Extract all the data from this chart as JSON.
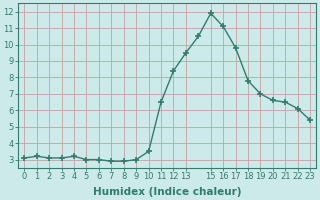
{
  "x": [
    0,
    1,
    2,
    3,
    4,
    5,
    6,
    7,
    8,
    9,
    10,
    11,
    12,
    13,
    14,
    15,
    16,
    17,
    18,
    19,
    20,
    21,
    22,
    23
  ],
  "y": [
    3.1,
    3.2,
    3.1,
    3.1,
    3.2,
    3.0,
    3.0,
    2.9,
    2.9,
    3.0,
    3.5,
    6.5,
    8.4,
    9.5,
    10.5,
    11.9,
    11.1,
    9.8,
    7.8,
    7.0,
    6.6,
    6.5,
    6.1,
    5.4
  ],
  "line_color": "#2e7d6e",
  "marker": "+",
  "marker_size": 5,
  "marker_lw": 1.2,
  "line_width": 1.0,
  "background_color": "#cceaea",
  "grid_color": "#c8a0a0",
  "xlabel": "Humidex (Indice chaleur)",
  "xlim": [
    -0.5,
    23.5
  ],
  "ylim": [
    2.5,
    12.5
  ],
  "yticks": [
    3,
    4,
    5,
    6,
    7,
    8,
    9,
    10,
    11,
    12
  ],
  "xticks": [
    0,
    1,
    2,
    3,
    4,
    5,
    6,
    7,
    8,
    9,
    10,
    11,
    12,
    13,
    15,
    16,
    17,
    18,
    19,
    20,
    21,
    22,
    23
  ],
  "tick_color": "#2e7d6e",
  "label_fontsize": 7.5,
  "tick_fontsize": 6.0
}
